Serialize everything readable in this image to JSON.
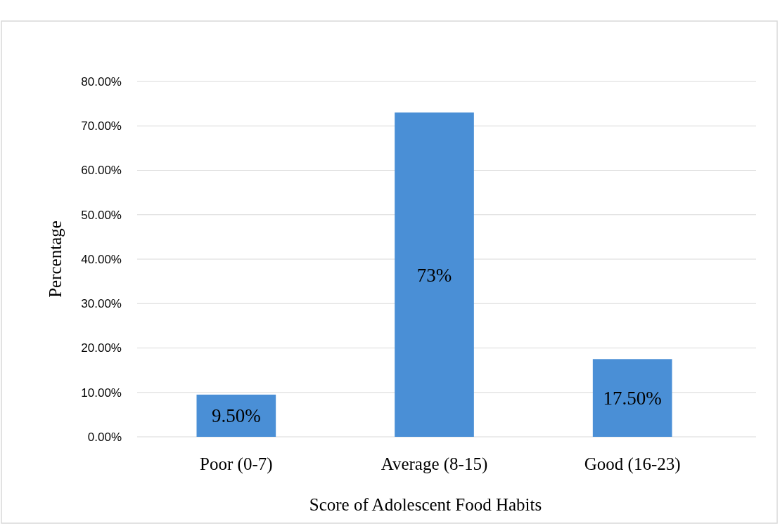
{
  "chart_data": {
    "type": "bar",
    "xlabel": "Score of Adolescent Food Habits",
    "ylabel": "Percentage",
    "categories": [
      "Poor (0-7)",
      "Average (8-15)",
      "Good (16-23)"
    ],
    "values": [
      9.5,
      73,
      17.5
    ],
    "value_labels": [
      "9.50%",
      "73%",
      "17.50%"
    ],
    "color": "#4a8fd6",
    "ylim": [
      0,
      80
    ],
    "yticks": [
      {
        "value": 0,
        "label": "0.00%"
      },
      {
        "value": 10,
        "label": "10.00%"
      },
      {
        "value": 20,
        "label": "20.00%"
      },
      {
        "value": 30,
        "label": "30.00%"
      },
      {
        "value": 40,
        "label": "40.00%"
      },
      {
        "value": 50,
        "label": "50.00%"
      },
      {
        "value": 60,
        "label": "60.00%"
      },
      {
        "value": 70,
        "label": "70.00%"
      },
      {
        "value": 80,
        "label": "80.00%"
      }
    ],
    "grid": "y"
  }
}
